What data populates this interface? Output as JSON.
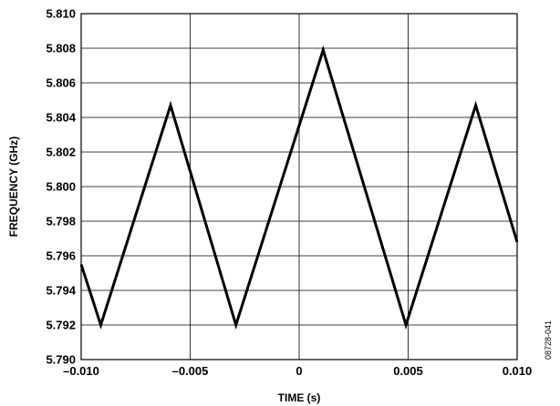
{
  "chart_data": {
    "type": "line",
    "title": "",
    "xlabel": "TIME (s)",
    "ylabel": "FREQUENCY (GHz)",
    "xlim": [
      -0.01,
      0.01
    ],
    "ylim": [
      5.79,
      5.81
    ],
    "x_ticks": [
      {
        "value": -0.01,
        "label": "–0.010"
      },
      {
        "value": -0.005,
        "label": "–0.005"
      },
      {
        "value": 0,
        "label": "0"
      },
      {
        "value": 0.005,
        "label": "0.005"
      },
      {
        "value": 0.01,
        "label": "0.010"
      }
    ],
    "y_ticks": [
      {
        "value": 5.79,
        "label": "5.790"
      },
      {
        "value": 5.792,
        "label": "5.792"
      },
      {
        "value": 5.794,
        "label": "5.794"
      },
      {
        "value": 5.796,
        "label": "5.796"
      },
      {
        "value": 5.798,
        "label": "5.798"
      },
      {
        "value": 5.8,
        "label": "5.800"
      },
      {
        "value": 5.802,
        "label": "5.802"
      },
      {
        "value": 5.804,
        "label": "5.804"
      },
      {
        "value": 5.806,
        "label": "5.806"
      },
      {
        "value": 5.808,
        "label": "5.808"
      },
      {
        "value": 5.81,
        "label": "5.810"
      }
    ],
    "grid": true,
    "series": [
      {
        "color": "#000000",
        "x": [
          -0.01,
          -0.0091,
          -0.0059,
          -0.0029,
          0.0011,
          0.0049,
          0.0081,
          0.01
        ],
        "y": [
          5.7955,
          5.792,
          5.8047,
          5.792,
          5.8079,
          5.792,
          5.8047,
          5.7968
        ]
      }
    ]
  },
  "figure_id": "08728-041"
}
